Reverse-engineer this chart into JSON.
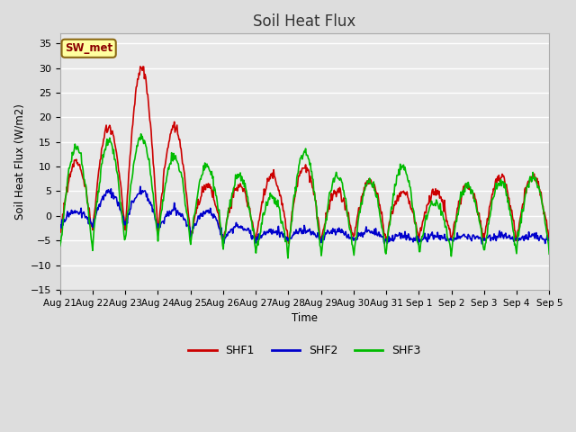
{
  "title": "Soil Heat Flux",
  "ylabel": "Soil Heat Flux (W/m2)",
  "xlabel": "Time",
  "ylim": [
    -15,
    37
  ],
  "yticks": [
    -15,
    -10,
    -5,
    0,
    5,
    10,
    15,
    20,
    25,
    30,
    35
  ],
  "x_labels": [
    "Aug 21",
    "Aug 22",
    "Aug 23",
    "Aug 24",
    "Aug 25",
    "Aug 26",
    "Aug 27",
    "Aug 28",
    "Aug 29",
    "Aug 30",
    "Aug 31",
    "Sep 1",
    "Sep 2",
    "Sep 3",
    "Sep 4",
    "Sep 5"
  ],
  "annotation_text": "SW_met",
  "annotation_color": "#8B0000",
  "annotation_bg": "#FFFFA0",
  "annotation_edge": "#8B6914",
  "line_colors": {
    "SHF1": "#CC0000",
    "SHF2": "#0000CC",
    "SHF3": "#00BB00"
  },
  "background_color": "#E8E8E8",
  "grid_color": "#FFFFFF",
  "fig_bg": "#DDDDDD",
  "legend_entries": [
    "SHF1",
    "SHF2",
    "SHF3"
  ]
}
